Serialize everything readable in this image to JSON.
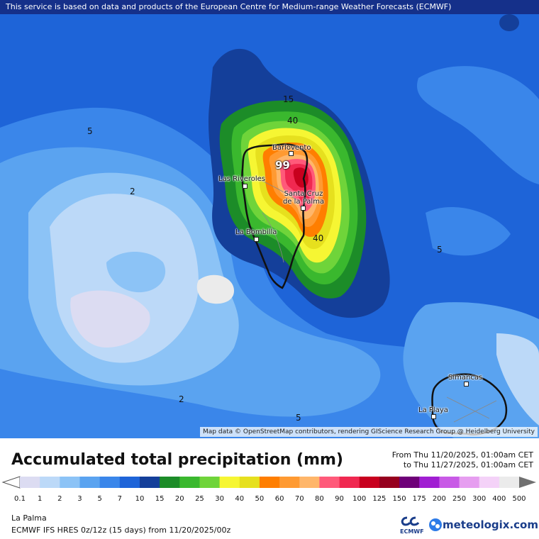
{
  "header": {
    "notice": "This service is based on data and products of the European Centre for Medium-range Weather Forecasts (ECMWF)"
  },
  "map": {
    "attribution": "Map data © OpenStreetMap contributors, rendering GIScience Research Group @ Heidelberg University",
    "contour_labels": [
      "15",
      "40",
      "5",
      "2",
      "40",
      "5",
      "2",
      "5"
    ],
    "max_label": "99",
    "places": [
      "Barlovento",
      "Las Riveroles",
      "Santa Cruz de la Palma",
      "La Bombilla",
      "Simancas",
      "La Playa"
    ]
  },
  "legend": {
    "title": "Accumulated total precipitation (mm)",
    "from": "From Thu 11/20/2025, 01:00am CET",
    "to": "to Thu 11/27/2025, 01:00am CET",
    "ticks": [
      "0.1",
      "1",
      "2",
      "3",
      "5",
      "7",
      "10",
      "15",
      "20",
      "25",
      "30",
      "40",
      "50",
      "60",
      "70",
      "80",
      "90",
      "100",
      "125",
      "150",
      "175",
      "200",
      "250",
      "300",
      "400",
      "500"
    ],
    "colors": [
      "#dcdcf2",
      "#bcd9f8",
      "#8cc3f6",
      "#5aa3f0",
      "#3a86ea",
      "#1e64d8",
      "#143f9a",
      "#1c8c28",
      "#3ab82e",
      "#6fd43a",
      "#f6f633",
      "#e6e01e",
      "#ff7e00",
      "#ff9a32",
      "#ffb66a",
      "#ff5a7a",
      "#f02850",
      "#c8001e",
      "#96001e",
      "#6e0078",
      "#a01ed2",
      "#c85ae6",
      "#e69ef0",
      "#f4d2f8",
      "#ebebeb"
    ]
  },
  "footer": {
    "location": "La Palma",
    "model": "ECMWF IFS HRES 0z/12z (15 days) from  11/20/2025/00z",
    "ecmwf_label": "ECMWF",
    "brand": "meteologix.com"
  }
}
